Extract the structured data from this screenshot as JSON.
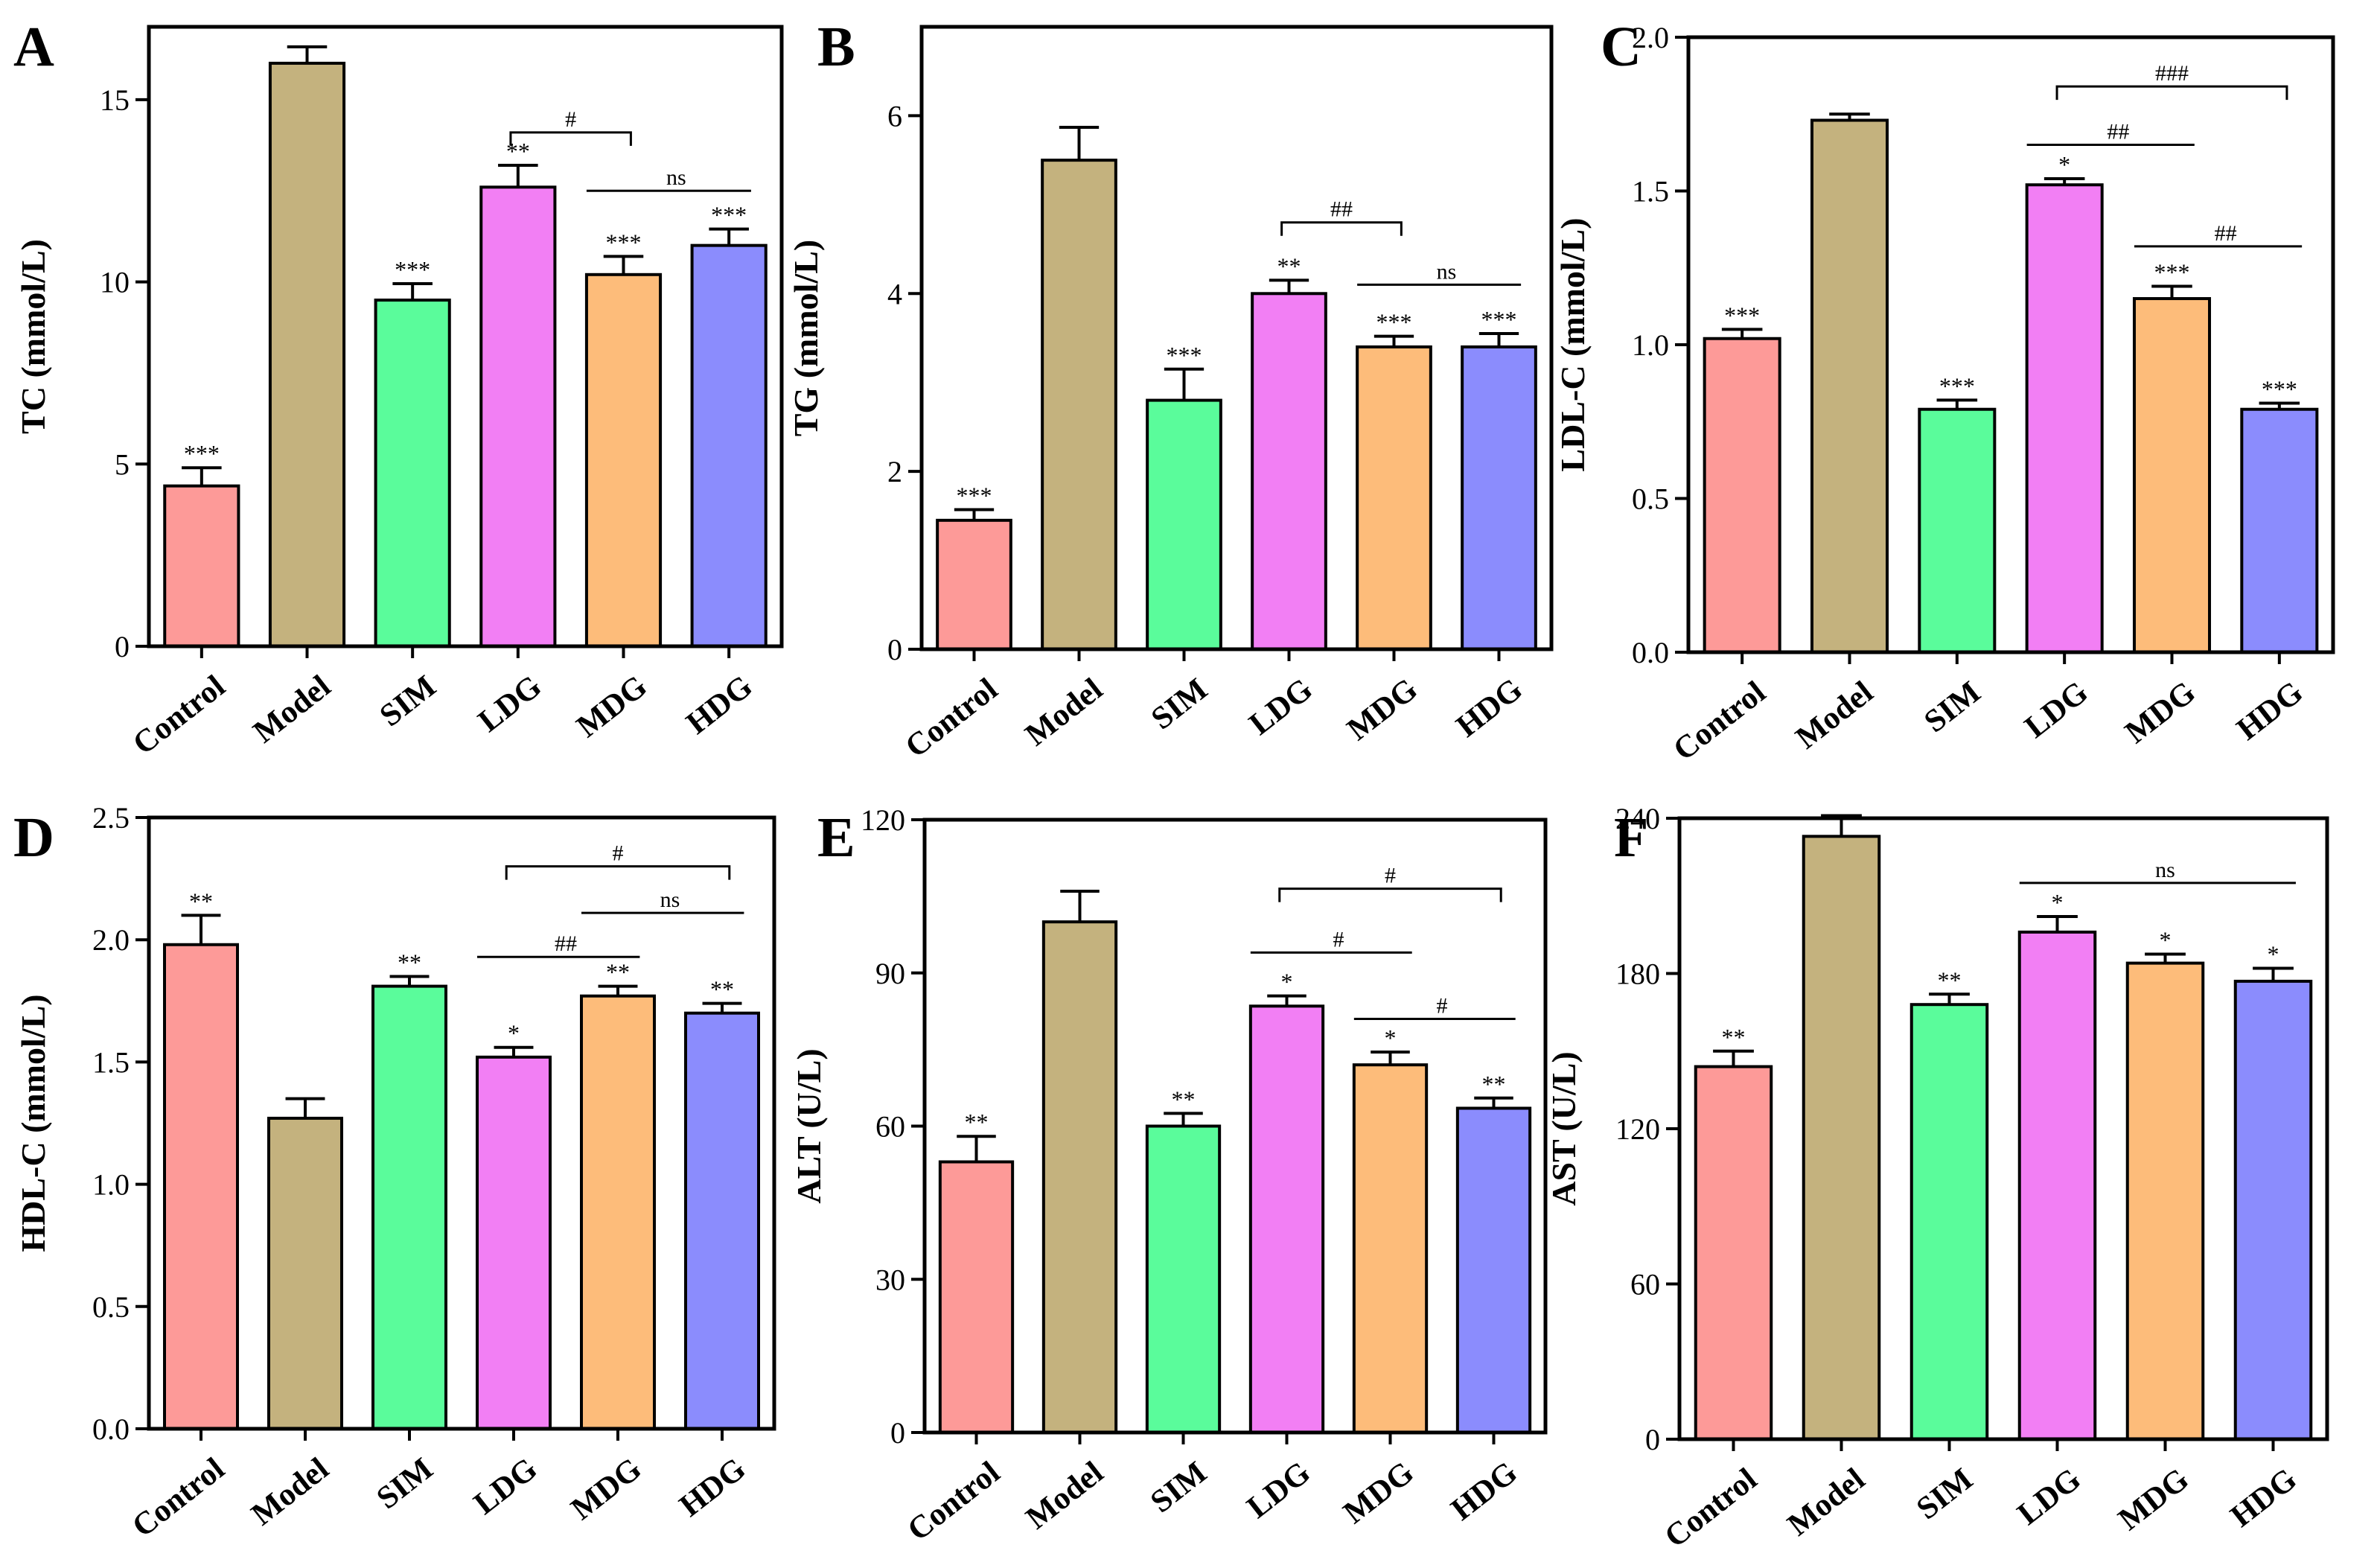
{
  "chart_data": [
    {
      "panel": "A",
      "type": "bar",
      "ylabel": "TC (mmol/L)",
      "ylim": [
        0,
        17
      ],
      "yticks": [
        0,
        5,
        10,
        15
      ],
      "categories": [
        "Control",
        "Model",
        "SIM",
        "LDG",
        "MDG",
        "HDG"
      ],
      "values": [
        4.4,
        16.0,
        9.5,
        12.6,
        10.2,
        11.0
      ],
      "errors": [
        0.5,
        0.45,
        0.45,
        0.6,
        0.5,
        0.45
      ],
      "sig": [
        "***",
        "",
        "***",
        "**",
        "***",
        "***"
      ],
      "comparisons": [
        {
          "from": 3,
          "to": 4,
          "label": "#",
          "y": 14.1,
          "ticks": true
        },
        {
          "from": 4,
          "to": 5,
          "label": "ns",
          "y": 12.5,
          "ticks": false
        }
      ]
    },
    {
      "panel": "B",
      "type": "bar",
      "ylabel": "TG (mmol/L)",
      "ylim": [
        0,
        7
      ],
      "yticks": [
        0,
        2,
        4,
        6
      ],
      "categories": [
        "Control",
        "Model",
        "SIM",
        "LDG",
        "MDG",
        "HDG"
      ],
      "values": [
        1.45,
        5.5,
        2.8,
        4.0,
        3.4,
        3.4
      ],
      "errors": [
        0.12,
        0.37,
        0.35,
        0.15,
        0.12,
        0.15
      ],
      "sig": [
        "***",
        "",
        "***",
        "**",
        "***",
        "***"
      ],
      "comparisons": [
        {
          "from": 3,
          "to": 4,
          "label": "##",
          "y": 4.8,
          "ticks": true
        },
        {
          "from": 4,
          "to": 5,
          "label": "ns",
          "y": 4.1,
          "ticks": false
        }
      ]
    },
    {
      "panel": "C",
      "type": "bar",
      "ylabel": "LDL-C (mmol/L)",
      "ylim": [
        0,
        2.0
      ],
      "yticks": [
        "0.0",
        "0.5",
        "1.0",
        "1.5",
        "2.0"
      ],
      "categories": [
        "Control",
        "Model",
        "SIM",
        "LDG",
        "MDG",
        "HDG"
      ],
      "values": [
        1.02,
        1.73,
        0.79,
        1.52,
        1.15,
        0.79
      ],
      "errors": [
        0.03,
        0.02,
        0.03,
        0.02,
        0.04,
        0.02
      ],
      "sig": [
        "***",
        "",
        "***",
        "*",
        "***",
        "***"
      ],
      "comparisons": [
        {
          "from": 3,
          "to": 5,
          "label": "###",
          "y": 1.84,
          "ticks": true
        },
        {
          "from": 3,
          "to": 4,
          "label": "##",
          "y": 1.65,
          "ticks": false
        },
        {
          "from": 4,
          "to": 5,
          "label": "##",
          "y": 1.32,
          "ticks": false
        }
      ]
    },
    {
      "panel": "D",
      "type": "bar",
      "ylabel": "HDL-C (mmol/L)",
      "ylim": [
        0,
        2.5
      ],
      "yticks": [
        "0.0",
        "0.5",
        "1.0",
        "1.5",
        "2.0",
        "2.5"
      ],
      "categories": [
        "Control",
        "Model",
        "SIM",
        "LDG",
        "MDG",
        "HDG"
      ],
      "values": [
        1.98,
        1.27,
        1.81,
        1.52,
        1.77,
        1.7
      ],
      "errors": [
        0.12,
        0.08,
        0.04,
        0.04,
        0.04,
        0.04
      ],
      "sig": [
        "**",
        "",
        "**",
        "*",
        "**",
        "**"
      ],
      "comparisons": [
        {
          "from": 3,
          "to": 5,
          "label": "#",
          "y": 2.3,
          "ticks": true
        },
        {
          "from": 4,
          "to": 5,
          "label": "ns",
          "y": 2.11,
          "ticks": false
        },
        {
          "from": 3,
          "to": 4,
          "label": "##",
          "y": 1.93,
          "ticks": false
        }
      ]
    },
    {
      "panel": "E",
      "type": "bar",
      "ylabel": "ALT (U/L)",
      "ylim": [
        0,
        120
      ],
      "yticks": [
        0,
        30,
        60,
        90,
        120
      ],
      "categories": [
        "Control",
        "Model",
        "SIM",
        "LDG",
        "MDG",
        "HDG"
      ],
      "values": [
        53,
        100,
        60,
        83.5,
        72,
        63.5
      ],
      "errors": [
        5,
        6,
        2.5,
        2,
        2.5,
        2
      ],
      "sig": [
        "**",
        "",
        "**",
        "*",
        "*",
        "**"
      ],
      "comparisons": [
        {
          "from": 3,
          "to": 5,
          "label": "#",
          "y": 106.5,
          "ticks": true
        },
        {
          "from": 3,
          "to": 4,
          "label": "#",
          "y": 94,
          "ticks": false
        },
        {
          "from": 4,
          "to": 5,
          "label": "#",
          "y": 81,
          "ticks": false
        }
      ]
    },
    {
      "panel": "F",
      "type": "bar",
      "ylabel": "AST (U/L)",
      "ylim": [
        0,
        240
      ],
      "yticks": [
        0,
        60,
        120,
        180,
        240
      ],
      "categories": [
        "Control",
        "Model",
        "SIM",
        "LDG",
        "MDG",
        "HDG"
      ],
      "values": [
        144,
        233,
        168,
        196,
        184,
        177
      ],
      "errors": [
        6,
        8,
        4,
        6,
        3.5,
        5
      ],
      "sig": [
        "**",
        "",
        "**",
        "*",
        "*",
        "*"
      ],
      "comparisons": [
        {
          "from": 3,
          "to": 5,
          "label": "ns",
          "y": 215,
          "ticks": false
        }
      ]
    }
  ],
  "colors": {
    "bars": [
      "#fd9a98",
      "#c4b27e",
      "#5afc9b",
      "#f27ff4",
      "#fdbc7a",
      "#8b8cfd"
    ],
    "frame": "#000000"
  }
}
